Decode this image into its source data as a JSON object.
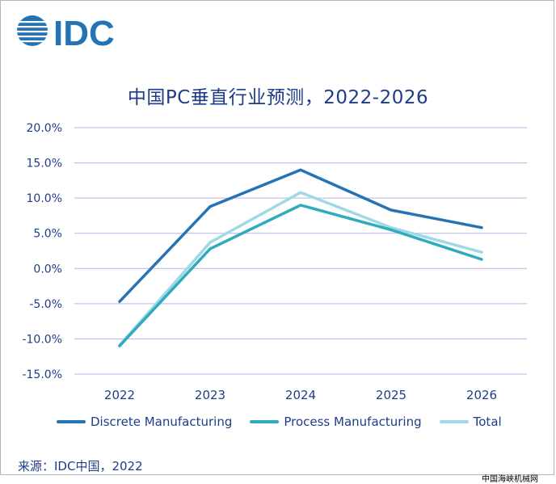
{
  "brand": {
    "logo_text": "IDC"
  },
  "source": "来源：IDC中国，2022",
  "watermark": "中国海峡机械网",
  "chart_data": {
    "type": "line",
    "title": "中国PC垂直行业预测，2022-2026",
    "xlabel": "",
    "ylabel": "",
    "categories": [
      "2022",
      "2023",
      "2024",
      "2025",
      "2026"
    ],
    "ylim": [
      -15,
      20
    ],
    "yticks": [
      20,
      15,
      10,
      5,
      0,
      -5,
      -10,
      -15
    ],
    "ytick_labels": [
      "20.0%",
      "15.0%",
      "10.0%",
      "5.0%",
      "0.0%",
      "-5.0%",
      "-10.0%",
      "-15.0%"
    ],
    "grid": true,
    "legend_position": "bottom",
    "series": [
      {
        "name": "Discrete Manufacturing",
        "color": "#2474b5",
        "values": [
          -4.7,
          8.8,
          14.0,
          8.3,
          5.8
        ]
      },
      {
        "name": "Process Manufacturing",
        "color": "#2fabbd",
        "values": [
          -11.0,
          2.8,
          9.0,
          5.5,
          1.3
        ]
      },
      {
        "name": "Total",
        "color": "#9fd9e6",
        "values": [
          -10.9,
          3.7,
          10.8,
          5.8,
          2.3
        ]
      }
    ]
  }
}
